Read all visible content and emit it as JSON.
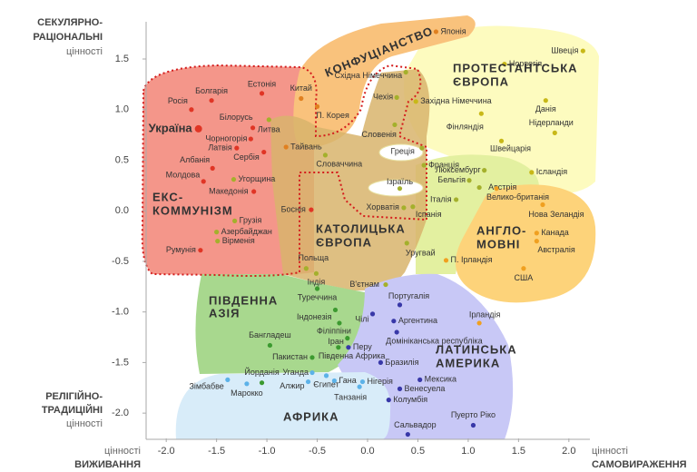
{
  "chart_data": {
    "type": "scatter",
    "xlim": [
      -2.2,
      2.2
    ],
    "ylim": [
      -2.25,
      1.85
    ],
    "xticks": [
      {
        "value": -2,
        "label": "-2.0"
      },
      -1.5,
      {
        "value": -1,
        "label": "-1.0"
      },
      -0.5,
      {
        "value": 0,
        "label": "0.0"
      },
      0.5,
      {
        "value": 1,
        "label": "1.0"
      },
      1.5,
      {
        "value": 2,
        "label": "2.0"
      }
    ],
    "yticks": [
      1.5,
      {
        "value": 1,
        "label": "1.0"
      },
      0.5,
      {
        "value": 0,
        "label": "0.0"
      },
      -0.5,
      {
        "value": -1,
        "label": "-1.0"
      },
      -1.5,
      {
        "value": -2,
        "label": "-2.0"
      }
    ],
    "y_top_label": [
      "СЕКУЛЯРНО-",
      "РАЦІОНАЛЬНІ",
      "цінності"
    ],
    "y_bottom_label": [
      "РЕЛІГІЙНО-",
      "ТРАДИЦІЙНІ",
      "цінності"
    ],
    "x_left_label": [
      "цінності",
      "ВИЖИВАННЯ"
    ],
    "x_right_label": [
      "цінності",
      "САМОВИРАЖЕННЯ"
    ],
    "regions": [
      [
        "КОНФУЦІАНСТВО"
      ],
      [
        "ПРОТЕСТАНТСЬКА",
        "ЄВРОПА"
      ],
      [
        "ЕКС-",
        "КОММУНІЗМ"
      ],
      [
        "КАТОЛИЦЬКА",
        "ЄВРОПА"
      ],
      [
        "АНГЛО-",
        "МОВНІ"
      ],
      [
        "ПІВДЕННА",
        "АЗІЯ"
      ],
      [
        "ЛАТИНСЬКА",
        "АМЕРИКА"
      ],
      [
        "АФРИКА"
      ]
    ],
    "series": [
      {
        "color": "#e03525",
        "labels": [
          "Росія",
          "Болгарія",
          "Естонія",
          "Україна",
          "Білорусь",
          "Чорногорія",
          "Латвія",
          "Сербія",
          "Албанія",
          "Молдова",
          "Македонія",
          "Боснія",
          "Румунія"
        ],
        "x": [
          -1.75,
          -1.55,
          -1.05,
          -1.68,
          -1.14,
          -1.16,
          -1.3,
          -1.03,
          -1.54,
          -1.63,
          -1.13,
          -0.56,
          -1.66
        ],
        "values": [
          1.0,
          1.09,
          1.16,
          0.81,
          0.82,
          0.71,
          0.62,
          0.58,
          0.42,
          0.29,
          0.19,
          0.01,
          -0.39
        ]
      },
      {
        "color": "#a4b02c",
        "labels": [
          "Литва",
          "Угорщина",
          "Грузія",
          "Азербайджан",
          "Вірменія",
          "Словаччина",
          "Чехія",
          "Східна Німеччина",
          "Словенія",
          "Хорватія",
          "Іспанія",
          "Польща",
          "Індія",
          "В'єтнам",
          "Уругвай",
          "Італія",
          "Бельгія",
          "Франція",
          "Люксембург",
          "Австрія",
          "Греція",
          "Ізраїль"
        ],
        "x": [
          -0.98,
          -1.33,
          -1.32,
          -1.5,
          -1.49,
          -0.42,
          0.29,
          0.38,
          0.27,
          0.36,
          0.45,
          -0.61,
          -0.51,
          0.18,
          0.39,
          0.88,
          1.01,
          0.56,
          1.16,
          1.11,
          0.54,
          0.32
        ],
        "values": [
          0.9,
          0.31,
          -0.1,
          -0.21,
          -0.3,
          0.55,
          1.12,
          1.37,
          0.85,
          0.03,
          0.04,
          -0.57,
          -0.62,
          -0.73,
          -0.32,
          0.11,
          0.3,
          0.45,
          0.4,
          0.23,
          0.62,
          0.22
        ]
      },
      {
        "color": "#e08020",
        "labels": [
          "Китай",
          "П. Корея",
          "Тайвань",
          "Японія"
        ],
        "x": [
          -0.66,
          -0.5,
          -0.81,
          0.68
        ],
        "values": [
          1.11,
          1.03,
          0.63,
          1.77
        ]
      },
      {
        "color": "#c8b818",
        "labels": [
          "Швеція",
          "Норвегія",
          "Західна Німеччина",
          "Данія",
          "Нідерланди",
          "Фінляндія",
          "Швейцарія",
          "Ісландія"
        ],
        "x": [
          2.14,
          1.36,
          0.48,
          1.77,
          1.86,
          1.13,
          1.33,
          1.63
        ],
        "values": [
          1.58,
          1.45,
          1.08,
          1.09,
          0.77,
          0.96,
          0.69,
          0.38
        ]
      },
      {
        "color": "#f0a020",
        "labels": [
          "Велико-британія",
          "Нова Зеландія",
          "Канада",
          "Австралія",
          "П. Ірландія",
          "США",
          "Ірландія"
        ],
        "x": [
          1.28,
          1.74,
          1.68,
          1.68,
          0.78,
          1.55,
          1.11
        ],
        "values": [
          0.22,
          0.06,
          -0.22,
          -0.3,
          -0.49,
          -0.57,
          -1.11
        ]
      },
      {
        "color": "#3c9a30",
        "labels": [
          "Туреччина",
          "Індонезія",
          "Філіппіни",
          "Іран",
          "Бангладеш",
          "Пакистан",
          "Йорданія",
          "Південна Африка"
        ],
        "x": [
          -0.5,
          -0.32,
          -0.28,
          -0.2,
          -0.97,
          -0.55,
          -1.05,
          -0.29
        ],
        "values": [
          -0.77,
          -0.98,
          -1.11,
          -1.26,
          -1.33,
          -1.45,
          -1.7,
          -1.35
        ]
      },
      {
        "color": "#3838a8",
        "labels": [
          "Португалія",
          "Чілі",
          "Аргентина",
          "Домініканська республіка",
          "Перу",
          "Бразилія",
          "Мексика",
          "Венесуела",
          "Колумбія",
          "Пуерто Ріко",
          "Сальвадор"
        ],
        "x": [
          0.32,
          0.05,
          0.26,
          0.29,
          -0.19,
          0.13,
          0.52,
          0.32,
          0.21,
          1.05,
          0.4
        ],
        "values": [
          -0.93,
          -1.02,
          -1.09,
          -1.2,
          -1.35,
          -1.5,
          -1.67,
          -1.76,
          -1.87,
          -2.12,
          -2.21
        ]
      },
      {
        "color": "#5cb2e8",
        "labels": [
          "Зімбабве",
          "Марокко",
          "Уганда",
          "Алжир",
          "Єгипет",
          "Гана",
          "Нігерія",
          "Танзанія"
        ],
        "x": [
          -1.39,
          -1.2,
          -0.55,
          -0.59,
          -0.41,
          -0.33,
          -0.05,
          -0.08
        ],
        "values": [
          -1.67,
          -1.71,
          -1.6,
          -1.69,
          -1.63,
          -1.68,
          -1.69,
          -1.74
        ]
      }
    ]
  }
}
